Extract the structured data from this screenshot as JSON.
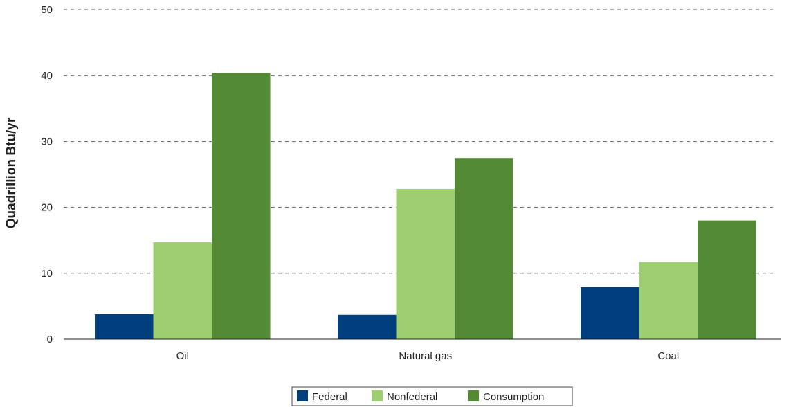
{
  "chart_data": {
    "type": "bar",
    "categories": [
      "Oil",
      "Natural gas",
      "Coal"
    ],
    "series": [
      {
        "name": "Federal",
        "values": [
          3.8,
          3.7,
          7.9
        ],
        "color": "#003e7e"
      },
      {
        "name": "Nonfederal",
        "values": [
          14.7,
          22.8,
          11.7
        ],
        "color": "#9dcf70"
      },
      {
        "name": "Consumption",
        "values": [
          40.4,
          27.5,
          18.0
        ],
        "color": "#548935"
      }
    ],
    "ylabel": "Quadrillion Btu/yr",
    "ylim": [
      0,
      50
    ],
    "yticks": [
      0,
      10,
      20,
      30,
      40,
      50
    ],
    "grid": true,
    "legend_position": "bottom"
  }
}
